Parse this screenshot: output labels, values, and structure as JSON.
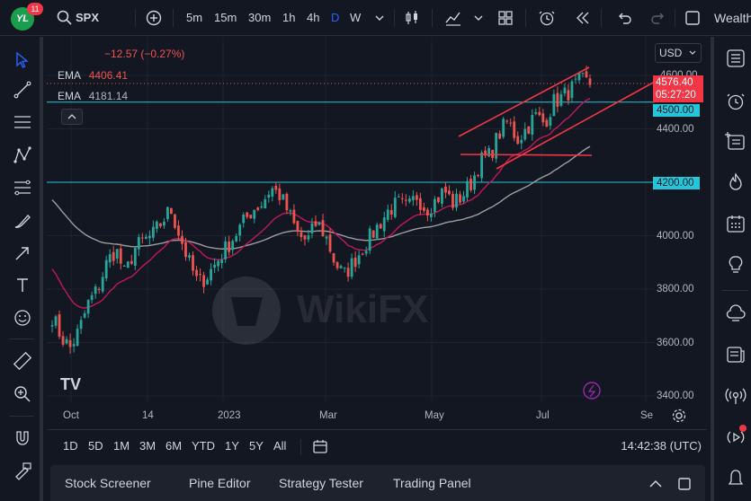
{
  "app": {
    "logo_text": "YL",
    "notification_count": "11"
  },
  "toolbar": {
    "symbol": "SPX",
    "intervals": [
      "5m",
      "15m",
      "30m",
      "1h",
      "4h",
      "D",
      "W"
    ],
    "active_interval": "D",
    "account_label": "Wealth"
  },
  "legend": {
    "change": "−12.57 (−0.27%)",
    "ema1_label": "EMA",
    "ema1_value": "4406.41",
    "ema2_label": "EMA",
    "ema2_value": "4181.14"
  },
  "price_axis": {
    "currency": "USD",
    "ticks": [
      "4600.00",
      "4400.00",
      "4000.00",
      "3800.00",
      "3600.00",
      "3400.00"
    ],
    "current_price": "4576.40",
    "countdown": "05:27:20",
    "level_1": "4500.00",
    "level_2": "4200.00"
  },
  "time_axis": {
    "ticks": [
      "Oct",
      "14",
      "2023",
      "Mar",
      "May",
      "Jul",
      "Se"
    ]
  },
  "watermark": "WikiFX",
  "ranges": [
    "1D",
    "5D",
    "1M",
    "3M",
    "6M",
    "YTD",
    "1Y",
    "5Y",
    "All"
  ],
  "clock": "14:42:38 (UTC)",
  "panels": [
    "Stock Screener",
    "Pine Editor",
    "Strategy Tester",
    "Trading Panel"
  ],
  "colors": {
    "up": "#26a69a",
    "down": "#ef5350",
    "ema_fast": "#c2185b",
    "ema_slow": "#9e9e9e",
    "level": "#26c6da",
    "trendline": "#f23645",
    "accent": "#2962ff"
  },
  "chart_data": {
    "type": "candlestick",
    "ylim": [
      3400,
      4660
    ],
    "horizontal_levels": [
      4500,
      4200
    ],
    "trend_lines": [
      {
        "from": [
          "2023-05-20",
          4330
        ],
        "to": [
          "2023-07-28",
          4630
        ]
      },
      {
        "from": [
          "2023-06-15",
          4310
        ],
        "to": [
          "2023-08-20",
          4600
        ]
      },
      {
        "from": [
          "2023-05-20",
          4300
        ],
        "to": [
          "2023-07-28",
          4295
        ]
      }
    ],
    "series": [
      {
        "name": "EMA",
        "values": [
          4406.41
        ]
      },
      {
        "name": "EMA",
        "values": [
          4181.14
        ]
      }
    ],
    "close_path": [
      3700,
      3620,
      3580,
      3650,
      3750,
      3800,
      3900,
      3950,
      3850,
      3950,
      3980,
      4000,
      4050,
      4100,
      4000,
      3900,
      3820,
      3850,
      3900,
      3950,
      4000,
      4050,
      4100,
      4120,
      4180,
      4150,
      4080,
      4000,
      3980,
      4050,
      4000,
      3900,
      3850,
      3900,
      3950,
      4000,
      4050,
      4100,
      4120,
      4100,
      4150,
      4100,
      4130,
      4170,
      4120,
      4150,
      4200,
      4280,
      4300,
      4380,
      4430,
      4360,
      4400,
      4450,
      4420,
      4500,
      4520,
      4550,
      4580,
      4570
    ]
  }
}
